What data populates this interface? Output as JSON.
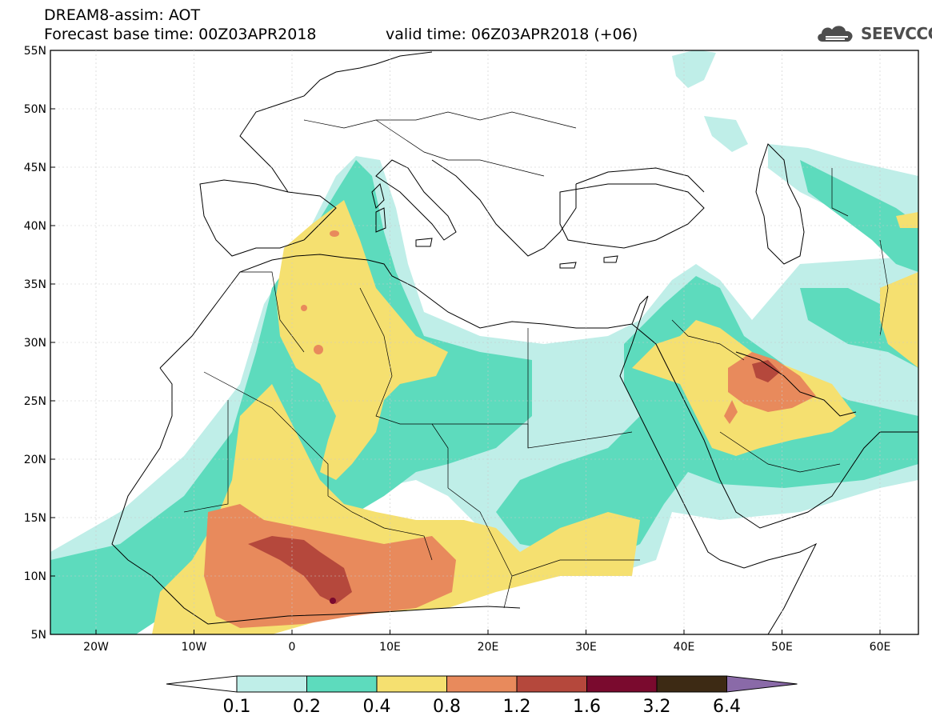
{
  "header": {
    "line1": "DREAM8-assim: AOT",
    "line2": "Forecast base time: 00Z03APR2018",
    "valid_time": "valid time: 06Z03APR2018 (+06)"
  },
  "logo": {
    "text": "SEEVCCC",
    "icon": "cloud-icon",
    "color": "#4d4d4d"
  },
  "map_axes": {
    "lat_labels": [
      "55N",
      "50N",
      "45N",
      "40N",
      "35N",
      "30N",
      "25N",
      "20N",
      "15N",
      "10N",
      "5N"
    ],
    "lon_labels": [
      "20W",
      "10W",
      "0",
      "10E",
      "20E",
      "30E",
      "40E",
      "50E",
      "60E"
    ]
  },
  "colorbar": {
    "labels": [
      "0.1",
      "0.2",
      "0.4",
      "0.8",
      "1.2",
      "1.6",
      "3.2",
      "6.4"
    ],
    "colors": [
      "#ffffff",
      "#bfeee8",
      "#5ddbbd",
      "#f5e070",
      "#e88a5c",
      "#b5483c",
      "#7a0a2e",
      "#3d2a14",
      "#8a6aa8"
    ]
  }
}
